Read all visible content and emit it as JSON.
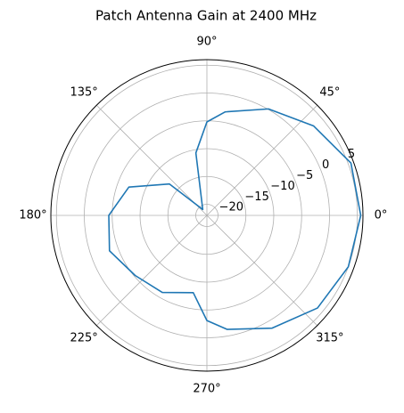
{
  "chart_data": {
    "type": "polar",
    "title": "Patch Antenna Gain at 2400 MHz",
    "x": [
      0,
      20,
      40,
      60,
      80,
      90,
      100,
      125,
      140,
      160,
      180,
      200,
      220,
      240,
      260,
      270,
      280,
      300,
      320,
      340,
      360
    ],
    "values": [
      5.6,
      5.5,
      3.0,
      0.1,
      -3.1,
      -5.2,
      -10.6,
      -20.7,
      -13.2,
      -7.1,
      -4.4,
      -3.4,
      -5.2,
      -6.0,
      -7.9,
      -3.1,
      -1.2,
      1.4,
      3.9,
      5.0,
      5.6
    ],
    "color": "#1f77b4",
    "ylim": [
      -22,
      6
    ],
    "yticks": [
      {
        "value": -20,
        "label": "−20"
      },
      {
        "value": -15,
        "label": "−15"
      },
      {
        "value": -10,
        "label": "−10"
      },
      {
        "value": -5,
        "label": "−5"
      },
      0,
      5
    ],
    "xticks": [
      {
        "value": 0,
        "label": "0°"
      },
      {
        "value": 45,
        "label": "45°"
      },
      {
        "value": 90,
        "label": "90°"
      },
      {
        "value": 135,
        "label": "135°"
      },
      {
        "value": 180,
        "label": "180°"
      },
      {
        "value": 225,
        "label": "225°"
      },
      {
        "value": 270,
        "label": "270°"
      },
      {
        "value": 315,
        "label": "315°"
      }
    ],
    "grid": true
  }
}
